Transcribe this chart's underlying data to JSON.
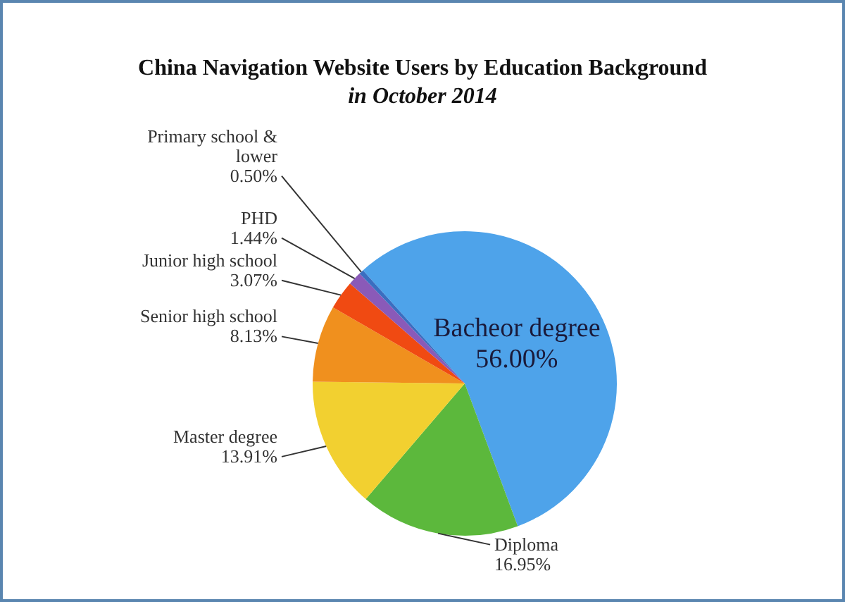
{
  "chart_data": {
    "type": "pie",
    "title": "China Navigation Website Users by Education Background",
    "subtitle": "in October 2014",
    "categories": [
      "Bacheor degree",
      "Diploma",
      "Master degree",
      "Senior high school",
      "Junior high school",
      "PHD",
      "Primary school & lower"
    ],
    "values": [
      56.0,
      16.95,
      13.91,
      8.13,
      3.07,
      1.44,
      0.5
    ],
    "value_labels": [
      "56.00%",
      "16.95%",
      "13.91%",
      "8.13%",
      "3.07%",
      "1.44%",
      "0.50%"
    ],
    "colors": [
      "#4ea3ea",
      "#5cb83c",
      "#f2d030",
      "#f0901e",
      "#f04a12",
      "#8a5ab8",
      "#3a6ec0"
    ],
    "legend": false
  }
}
